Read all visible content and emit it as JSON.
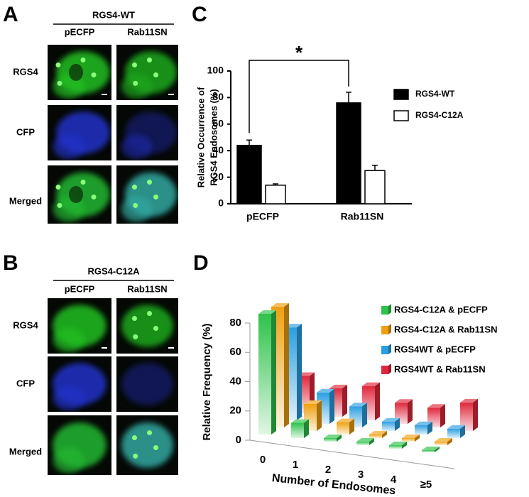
{
  "panels": {
    "A": {
      "label": "A",
      "header": "RGS4-WT",
      "columns": [
        "pECFP",
        "Rab11SN"
      ],
      "rows": [
        "RGS4",
        "CFP",
        "Merged"
      ]
    },
    "B": {
      "label": "B",
      "header": "RGS4-C12A",
      "columns": [
        "pECFP",
        "Rab11SN"
      ],
      "rows": [
        "RGS4",
        "CFP",
        "Merged"
      ]
    }
  },
  "chart_data": [
    {
      "type": "bar",
      "panel": "C",
      "annotation": "*",
      "ylabel": [
        "Relative Occurrence of",
        "RGS4 Endosomes  (%)"
      ],
      "categories": [
        "pECFP",
        "Rab11SN"
      ],
      "series": [
        {
          "name": "RGS4-WT",
          "color": "#000000",
          "values": [
            44,
            76
          ],
          "errors": [
            4,
            8
          ]
        },
        {
          "name": "RGS4-C12A",
          "color": "#ffffff",
          "values": [
            14,
            25
          ],
          "errors": [
            1,
            4
          ]
        }
      ],
      "ylim": [
        0,
        100
      ],
      "yticks": [
        0,
        20,
        40,
        60,
        80,
        100
      ],
      "legend": "right"
    },
    {
      "type": "bar3d",
      "panel": "D",
      "xlabel": "Number of Endosomes",
      "ylabel": "Relative Frequency (%)",
      "categories": [
        "0",
        "1",
        "2",
        "3",
        "4",
        "≥5"
      ],
      "series": [
        {
          "name": "RGS4-C12A & pECFP",
          "color": "#2ec24a",
          "values": [
            81,
            9,
            1,
            1,
            1,
            0
          ]
        },
        {
          "name": "RGS4-C12A & Rab11SN",
          "color": "#f0a010",
          "values": [
            81,
            17,
            7,
            1,
            1,
            1
          ]
        },
        {
          "name": "RGS4WT & pECFP",
          "color": "#2a9ee0",
          "values": [
            62,
            20,
            13,
            5,
            5,
            5
          ]
        },
        {
          "name": "RGS4WT & Rab11SN",
          "color": "#e0283c",
          "values": [
            24,
            18,
            22,
            13,
            12,
            18
          ]
        }
      ],
      "ylim": [
        0,
        80
      ],
      "yticks": [
        0,
        20,
        40,
        60,
        80
      ],
      "legend": "top-right"
    }
  ]
}
